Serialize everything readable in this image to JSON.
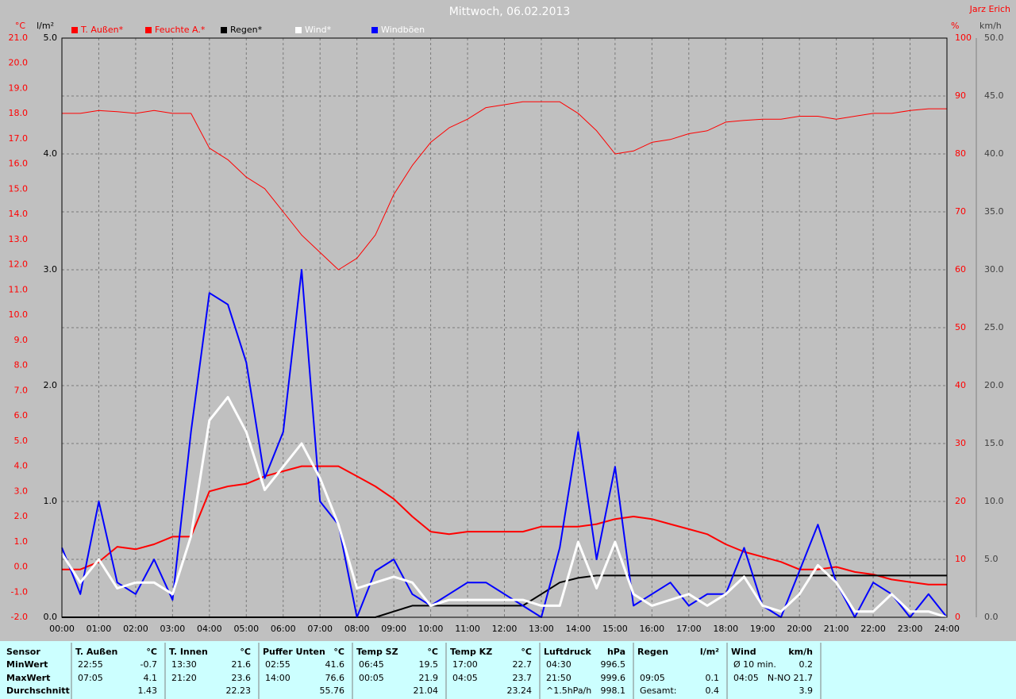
{
  "chart_data": {
    "type": "line",
    "title": "Mittwoch, 06.02.2013",
    "author": "Jarz Erich",
    "y_unit": "°C",
    "y3_unit": "l/m²",
    "y2_unit": "%",
    "y4_unit": "km/h",
    "x": [
      0,
      0.5,
      1,
      1.5,
      2,
      2.5,
      3,
      3.5,
      4,
      4.5,
      5,
      5.5,
      6,
      6.5,
      7,
      7.5,
      8,
      8.5,
      9,
      9.5,
      10,
      10.5,
      11,
      11.5,
      12,
      12.5,
      13,
      13.5,
      14,
      14.5,
      15,
      15.5,
      16,
      16.5,
      17,
      17.5,
      18,
      18.5,
      19,
      19.5,
      20,
      20.5,
      21,
      21.5,
      22,
      22.5,
      23,
      23.5,
      24
    ],
    "xlim": [
      0,
      24
    ],
    "xticks": [
      {
        "value": 0,
        "label": "00:00"
      },
      {
        "value": 1,
        "label": "01:00"
      },
      {
        "value": 2,
        "label": "02:00"
      },
      {
        "value": 3,
        "label": "03:00"
      },
      {
        "value": 4,
        "label": "04:00"
      },
      {
        "value": 5,
        "label": "05:00"
      },
      {
        "value": 6,
        "label": "06:00"
      },
      {
        "value": 7,
        "label": "07:00"
      },
      {
        "value": 8,
        "label": "08:00"
      },
      {
        "value": 9,
        "label": "09:00"
      },
      {
        "value": 10,
        "label": "10:00"
      },
      {
        "value": 11,
        "label": "11:00"
      },
      {
        "value": 12,
        "label": "12:00"
      },
      {
        "value": 13,
        "label": "13:00"
      },
      {
        "value": 14,
        "label": "14:00"
      },
      {
        "value": 15,
        "label": "15:00"
      },
      {
        "value": 16,
        "label": "16:00"
      },
      {
        "value": 17,
        "label": "17:00"
      },
      {
        "value": 18,
        "label": "18:00"
      },
      {
        "value": 19,
        "label": "19:00"
      },
      {
        "value": 20,
        "label": "20:00"
      },
      {
        "value": 21,
        "label": "21:00"
      },
      {
        "value": 22,
        "label": "22:00"
      },
      {
        "value": 23,
        "label": "23:00"
      },
      {
        "value": 24,
        "label": "24:00"
      }
    ],
    "ylim": [
      -2,
      21
    ],
    "yticks": [
      {
        "value": -2,
        "label": "-2.0"
      },
      {
        "value": -1,
        "label": "-1.0"
      },
      {
        "value": 0,
        "label": "0.0"
      },
      {
        "value": 1,
        "label": "1.0"
      },
      {
        "value": 2,
        "label": "2.0"
      },
      {
        "value": 3,
        "label": "3.0"
      },
      {
        "value": 4,
        "label": "4.0"
      },
      {
        "value": 5,
        "label": "5.0"
      },
      {
        "value": 6,
        "label": "6.0"
      },
      {
        "value": 7,
        "label": "7.0"
      },
      {
        "value": 8,
        "label": "8.0"
      },
      {
        "value": 9,
        "label": "9.0"
      },
      {
        "value": 10,
        "label": "10.0"
      },
      {
        "value": 11,
        "label": "11.0"
      },
      {
        "value": 12,
        "label": "12.0"
      },
      {
        "value": 13,
        "label": "13.0"
      },
      {
        "value": 14,
        "label": "14.0"
      },
      {
        "value": 15,
        "label": "15.0"
      },
      {
        "value": 16,
        "label": "16.0"
      },
      {
        "value": 17,
        "label": "17.0"
      },
      {
        "value": 18,
        "label": "18.0"
      },
      {
        "value": 19,
        "label": "19.0"
      },
      {
        "value": 20,
        "label": "20.0"
      },
      {
        "value": 21,
        "label": "21.0"
      }
    ],
    "y3lim": [
      0,
      5
    ],
    "y3ticks": [
      {
        "value": 0,
        "label": "0.0"
      },
      {
        "value": 1,
        "label": "1.0"
      },
      {
        "value": 2,
        "label": "2.0"
      },
      {
        "value": 3,
        "label": "3.0"
      },
      {
        "value": 4,
        "label": "4.0"
      },
      {
        "value": 5,
        "label": "5.0"
      }
    ],
    "y2lim": [
      0,
      100
    ],
    "y2ticks": [
      0,
      10,
      20,
      30,
      40,
      50,
      60,
      70,
      80,
      90,
      100
    ],
    "y4lim": [
      0,
      50
    ],
    "y4ticks": [
      {
        "value": 0,
        "label": "0.0"
      },
      {
        "value": 5,
        "label": "5.0"
      },
      {
        "value": 10,
        "label": "10.0"
      },
      {
        "value": 15,
        "label": "15.0"
      },
      {
        "value": 20,
        "label": "20.0"
      },
      {
        "value": 25,
        "label": "25.0"
      },
      {
        "value": 30,
        "label": "30.0"
      },
      {
        "value": 35,
        "label": "35.0"
      },
      {
        "value": 40,
        "label": "40.0"
      },
      {
        "value": 45,
        "label": "45.0"
      },
      {
        "value": 50,
        "label": "50.0"
      }
    ],
    "grid": true,
    "series": [
      {
        "name": "T. Außen*",
        "color": "#ff0000",
        "axis": "y",
        "width": 2,
        "values": [
          -0.1,
          -0.1,
          0.2,
          0.8,
          0.7,
          0.9,
          1.2,
          1.2,
          3.0,
          3.2,
          3.3,
          3.6,
          3.8,
          4.0,
          4.0,
          4.0,
          3.6,
          3.2,
          2.7,
          2.0,
          1.4,
          1.3,
          1.4,
          1.4,
          1.4,
          1.4,
          1.6,
          1.6,
          1.6,
          1.7,
          1.9,
          2.0,
          1.9,
          1.7,
          1.5,
          1.3,
          0.9,
          0.6,
          0.4,
          0.2,
          -0.1,
          -0.1,
          0.0,
          -0.2,
          -0.3,
          -0.5,
          -0.6,
          -0.7,
          -0.7
        ]
      },
      {
        "name": "Feuchte A.*",
        "color": "#ff0000",
        "axis": "y2",
        "width": 1,
        "values": [
          87,
          87,
          87.5,
          87.3,
          87,
          87.5,
          87,
          87,
          81,
          79,
          76,
          74,
          70,
          66,
          63,
          60,
          62,
          66,
          73,
          78,
          82,
          84.5,
          86,
          88,
          88.5,
          89,
          89,
          89,
          87,
          84,
          80,
          80.5,
          82,
          82.5,
          83.5,
          84,
          85.5,
          85.8,
          86,
          86,
          86.5,
          86.5,
          86,
          86.5,
          87,
          87,
          87.5,
          87.8,
          87.8
        ]
      },
      {
        "name": "Regen*",
        "color": "#000000",
        "axis": "y3",
        "width": 2,
        "values": [
          0,
          0,
          0,
          0,
          0,
          0,
          0,
          0,
          0,
          0,
          0,
          0,
          0,
          0,
          0,
          0,
          0,
          0,
          0.05,
          0.1,
          0.1,
          0.1,
          0.1,
          0.1,
          0.1,
          0.1,
          0.2,
          0.3,
          0.34,
          0.36,
          0.36,
          0.36,
          0.36,
          0.36,
          0.36,
          0.36,
          0.36,
          0.36,
          0.36,
          0.36,
          0.36,
          0.36,
          0.36,
          0.36,
          0.36,
          0.36,
          0.36,
          0.36,
          0.36
        ]
      },
      {
        "name": "Wind*",
        "color": "#ffffff",
        "axis": "y4",
        "width": 3,
        "values": [
          5.5,
          3,
          5,
          2.5,
          3,
          3,
          2,
          7,
          17,
          19,
          16,
          11,
          13,
          15,
          12,
          8,
          2.5,
          3,
          3.5,
          3,
          1,
          1.5,
          1.5,
          1.5,
          1.5,
          1.5,
          1,
          1,
          6.5,
          2.5,
          6.5,
          2,
          1,
          1.5,
          2,
          1,
          2,
          3.5,
          1,
          0.5,
          2,
          4.5,
          3,
          0.5,
          0.5,
          2,
          0.5,
          0.5,
          0
        ]
      },
      {
        "name": "Windböen",
        "color": "#0000ff",
        "axis": "y4",
        "width": 2,
        "values": [
          6,
          2,
          10,
          3,
          2,
          5,
          1.5,
          16,
          28,
          27,
          22,
          12,
          16,
          30,
          10,
          8,
          0,
          4,
          5,
          2,
          1,
          2,
          3,
          3,
          2,
          1,
          0,
          6,
          16,
          5,
          13,
          1,
          2,
          3,
          1,
          2,
          2,
          6,
          1,
          0,
          4,
          8,
          3,
          0,
          3,
          2,
          0,
          2,
          0
        ]
      }
    ]
  },
  "table": {
    "header": "Sensor",
    "row_labels": [
      "MinWert",
      "MaxWert",
      "Durchschnitt"
    ],
    "columns": [
      {
        "name": "T. Außen",
        "unit": "°C",
        "rows": [
          [
            "22:55",
            "-0.7"
          ],
          [
            "07:05",
            "4.1"
          ],
          [
            null,
            "1.43"
          ]
        ]
      },
      {
        "name": "T. Innen",
        "unit": "°C",
        "rows": [
          [
            "13:30",
            "21.6"
          ],
          [
            "21:20",
            "23.6"
          ],
          [
            null,
            "22.23"
          ]
        ]
      },
      {
        "name": "Puffer Unten",
        "unit": "°C",
        "rows": [
          [
            "02:55",
            "41.6"
          ],
          [
            "14:00",
            "76.6"
          ],
          [
            null,
            "55.76"
          ]
        ]
      },
      {
        "name": "Temp SZ",
        "unit": "°C",
        "rows": [
          [
            "06:45",
            "19.5"
          ],
          [
            "00:05",
            "21.9"
          ],
          [
            null,
            "21.04"
          ]
        ]
      },
      {
        "name": "Temp KZ",
        "unit": "°C",
        "rows": [
          [
            "17:00",
            "22.7"
          ],
          [
            "04:05",
            "23.7"
          ],
          [
            null,
            "23.24"
          ]
        ]
      },
      {
        "name": "Luftdruck",
        "unit": "hPa",
        "rows": [
          [
            "04:30",
            "996.5"
          ],
          [
            "21:50",
            "999.6"
          ],
          [
            "^1.5hPa/h",
            "998.1"
          ]
        ]
      },
      {
        "name": "Regen",
        "unit": "l/m²",
        "rows": [
          [
            null,
            null
          ],
          [
            "09:05",
            "0.1"
          ],
          [
            "Gesamt:",
            "0.4"
          ]
        ]
      },
      {
        "name": "Wind",
        "unit": "km/h",
        "rows": [
          [
            "Ø 10 min.",
            "0.2"
          ],
          [
            "04:05",
            "N-NO 21.7"
          ],
          [
            null,
            "3.9"
          ]
        ]
      }
    ]
  }
}
